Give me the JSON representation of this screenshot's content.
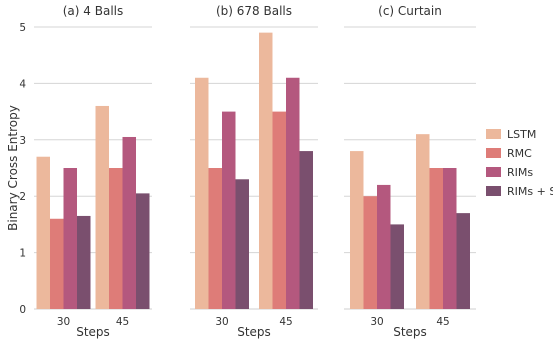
{
  "chart_data": {
    "type": "bar",
    "ylabel": "Binary Cross Entropy",
    "ylim": [
      0,
      5
    ],
    "yticks": [
      0,
      1,
      2,
      3,
      4,
      5
    ],
    "grid": "horizontal",
    "legend_position": "right",
    "colors": [
      "#ECB89C",
      "#DE7C78",
      "#B4587E",
      "#7A4F6E"
    ],
    "legend": [
      "LSTM",
      "RMC",
      "RIMs",
      "RIMs + SW"
    ],
    "panels": [
      {
        "title": "(a) 4 Balls",
        "xlabel": "Steps",
        "categories": [
          "30",
          "45"
        ],
        "series": [
          {
            "name": "LSTM",
            "values": [
              2.7,
              3.6
            ]
          },
          {
            "name": "RMC",
            "values": [
              1.6,
              2.5
            ]
          },
          {
            "name": "RIMs",
            "values": [
              2.5,
              3.05
            ]
          },
          {
            "name": "RIMs + SW",
            "values": [
              1.65,
              2.05
            ]
          }
        ]
      },
      {
        "title": "(b) 678 Balls",
        "xlabel": "Steps",
        "categories": [
          "30",
          "45"
        ],
        "series": [
          {
            "name": "LSTM",
            "values": [
              4.1,
              4.9
            ]
          },
          {
            "name": "RMC",
            "values": [
              2.5,
              3.5
            ]
          },
          {
            "name": "RIMs",
            "values": [
              3.5,
              4.1
            ]
          },
          {
            "name": "RIMs + SW",
            "values": [
              2.3,
              2.8
            ]
          }
        ]
      },
      {
        "title": "(c) Curtain",
        "xlabel": "Steps",
        "categories": [
          "30",
          "45"
        ],
        "series": [
          {
            "name": "LSTM",
            "values": [
              2.8,
              3.1
            ]
          },
          {
            "name": "RMC",
            "values": [
              2.0,
              2.5
            ]
          },
          {
            "name": "RIMs",
            "values": [
              2.2,
              2.5
            ]
          },
          {
            "name": "RIMs + SW",
            "values": [
              1.5,
              1.7
            ]
          }
        ]
      }
    ]
  }
}
